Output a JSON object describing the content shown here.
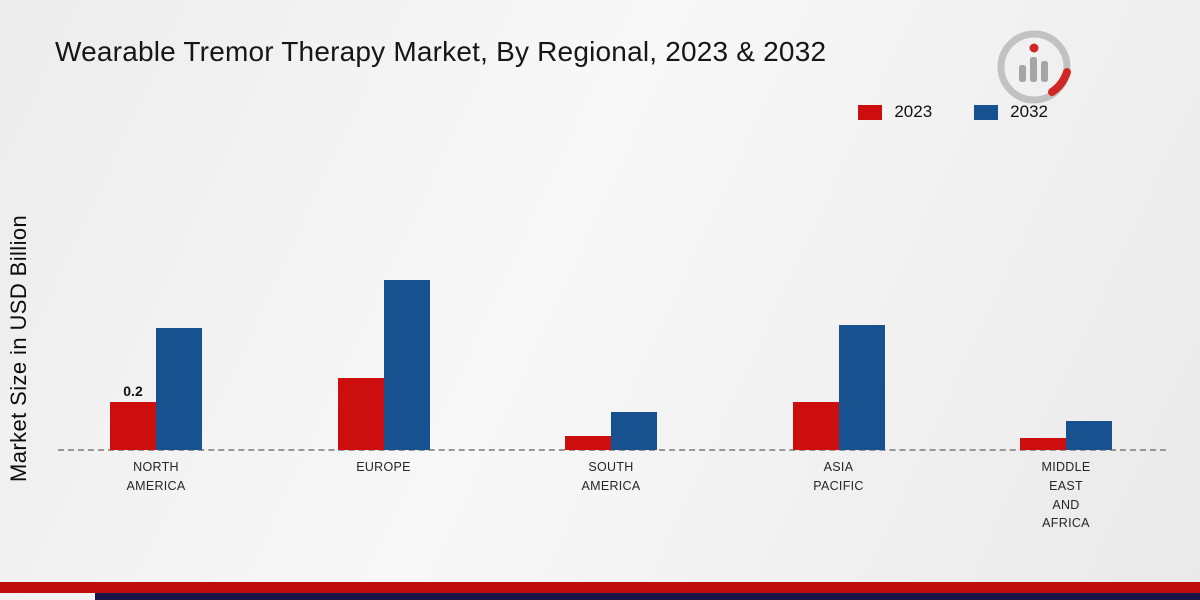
{
  "title": "Wearable Tremor Therapy Market, By Regional, 2023 & 2032",
  "y_axis_label": "Market Size in USD Billion",
  "icons": {
    "brand_logo": "bar-chart-magnifier-logo"
  },
  "footer": {
    "red_color": "#c00c0c",
    "navy_color": "#1a1446"
  },
  "chart_data": {
    "type": "bar",
    "title": "Wearable Tremor Therapy Market, By Regional, 2023 & 2032",
    "xlabel": "",
    "ylabel": "Market Size in USD Billion",
    "ylim": [
      0,
      0.8
    ],
    "grid": false,
    "legend_position": "top-right",
    "categories": [
      "NORTH AMERICA",
      "EUROPE",
      "SOUTH AMERICA",
      "ASIA PACIFIC",
      "MIDDLE EAST AND AFRICA"
    ],
    "category_lines": [
      [
        "NORTH",
        "AMERICA"
      ],
      [
        "EUROPE"
      ],
      [
        "SOUTH",
        "AMERICA"
      ],
      [
        "ASIA",
        "PACIFIC"
      ],
      [
        "MIDDLE",
        "EAST",
        "AND",
        "AFRICA"
      ]
    ],
    "series": [
      {
        "name": "2023",
        "color": "#cc0e0e",
        "values": [
          0.2,
          0.3,
          0.06,
          0.2,
          0.05
        ]
      },
      {
        "name": "2032",
        "color": "#17518f",
        "values": [
          0.51,
          0.71,
          0.16,
          0.52,
          0.12
        ]
      }
    ],
    "annotations": [
      {
        "series": "2023",
        "category_index": 0,
        "text": "0.2"
      }
    ]
  }
}
